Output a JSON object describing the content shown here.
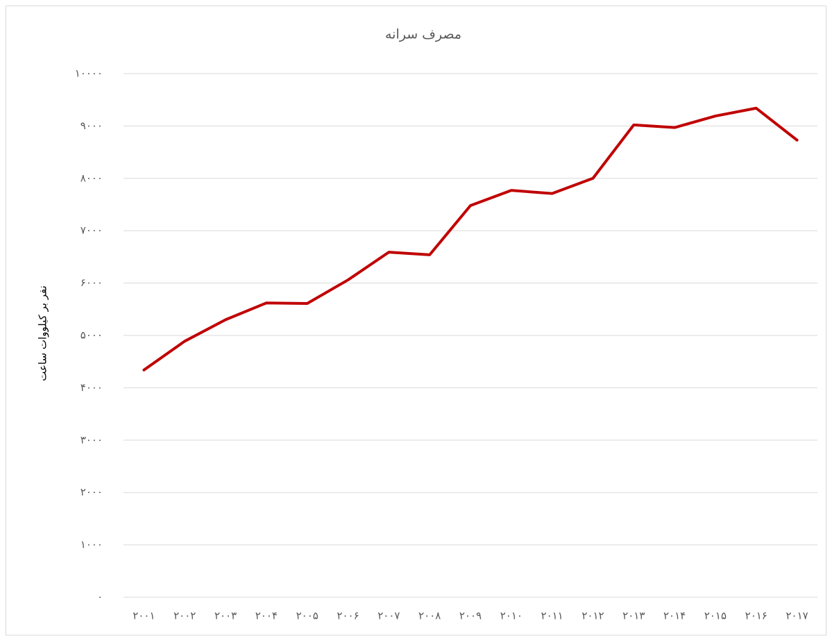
{
  "chart_data": {
    "type": "line",
    "title": "مصرف سرانه",
    "y_label": "نفر بر کیلووات ساعت",
    "categories": [
      "۲۰۰۱",
      "۲۰۰۲",
      "۲۰۰۳",
      "۲۰۰۴",
      "۲۰۰۵",
      "۲۰۰۶",
      "۲۰۰۷",
      "۲۰۰۸",
      "۲۰۰۹",
      "۲۰۱۰",
      "۲۰۱۱",
      "۲۰۱۲",
      "۲۰۱۳",
      "۲۰۱۴",
      "۲۰۱۵",
      "۲۰۱۶",
      "۲۰۱۷"
    ],
    "series": [
      {
        "name": "مصرف سرانه",
        "color": "#c00000",
        "values": [
          4340,
          4890,
          5300,
          5620,
          5610,
          6060,
          6590,
          6540,
          7480,
          7770,
          7710,
          8000,
          9020,
          8970,
          9190,
          9340,
          8730
        ]
      }
    ],
    "ylim": [
      0,
      10000
    ],
    "yticks": [
      {
        "value": 0,
        "label": "۰"
      },
      {
        "value": 1000,
        "label": "۱۰۰۰"
      },
      {
        "value": 2000,
        "label": "۲۰۰۰"
      },
      {
        "value": 3000,
        "label": "۳۰۰۰"
      },
      {
        "value": 4000,
        "label": "۴۰۰۰"
      },
      {
        "value": 5000,
        "label": "۵۰۰۰"
      },
      {
        "value": 6000,
        "label": "۶۰۰۰"
      },
      {
        "value": 7000,
        "label": "۷۰۰۰"
      },
      {
        "value": 8000,
        "label": "۸۰۰۰"
      },
      {
        "value": 9000,
        "label": "۹۰۰۰"
      },
      {
        "value": 10000,
        "label": "۱۰۰۰۰"
      }
    ],
    "grid": true
  }
}
